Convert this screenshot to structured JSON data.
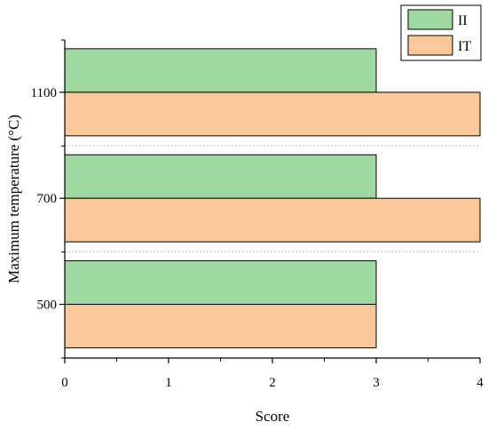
{
  "chart_data": {
    "type": "bar",
    "orientation": "horizontal",
    "categories": [
      "500",
      "700",
      "1100"
    ],
    "series": [
      {
        "name": "II",
        "values": [
          3,
          3,
          3
        ],
        "color": "#a0d9a0"
      },
      {
        "name": "IT",
        "values": [
          3,
          4,
          4
        ],
        "color": "#fbc899"
      }
    ],
    "xlabel": "Score",
    "ylabel": "Maximum temperature (°C)",
    "xlim": [
      0,
      4
    ],
    "xticks": [
      "0",
      "1",
      "2",
      "3",
      "4"
    ],
    "legend": "top-right",
    "grid": false,
    "category_separators": "dotted"
  }
}
